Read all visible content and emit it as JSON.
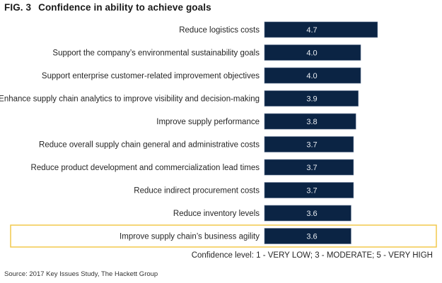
{
  "figure": {
    "number": "FIG. 3",
    "title": "Confidence in ability to achieve goals"
  },
  "colors": {
    "bar": "#0b2444",
    "bar_edge": "#5f7391",
    "highlight": "#f2c94c",
    "value_text": "#e8ecf2"
  },
  "chart_data": {
    "type": "bar",
    "orientation": "horizontal",
    "title": "Confidence in ability to achieve goals",
    "xlabel": "",
    "ylabel": "",
    "xlim": [
      0,
      5
    ],
    "grid": false,
    "categories": [
      "Reduce logistics costs",
      "Support the company’s environmental sustainability goals",
      "Support enterprise customer-related improvement objectives",
      "Enhance supply chain analytics to improve visibility and decision-making",
      "Improve supply performance",
      "Reduce overall supply chain general and administrative costs",
      "Reduce product development and commercialization lead times",
      "Reduce indirect procurement costs",
      "Reduce inventory levels",
      "Improve supply chain’s business agility"
    ],
    "values": [
      4.7,
      4.0,
      4.0,
      3.9,
      3.8,
      3.7,
      3.7,
      3.7,
      3.6,
      3.6
    ],
    "value_labels": [
      "4.7",
      "4.0",
      "4.0",
      "3.9",
      "3.8",
      "3.7",
      "3.7",
      "3.7",
      "3.6",
      "3.6"
    ],
    "highlighted_category": "Improve supply chain’s business agility",
    "annotation": "Confidence level: 1 - VERY LOW; 3 - MODERATE; 5 - VERY HIGH"
  },
  "scale_note": "Confidence level: 1 - VERY LOW; 3 - MODERATE; 5 - VERY HIGH",
  "source": "Source: 2017 Key Issues Study, The Hackett Group"
}
